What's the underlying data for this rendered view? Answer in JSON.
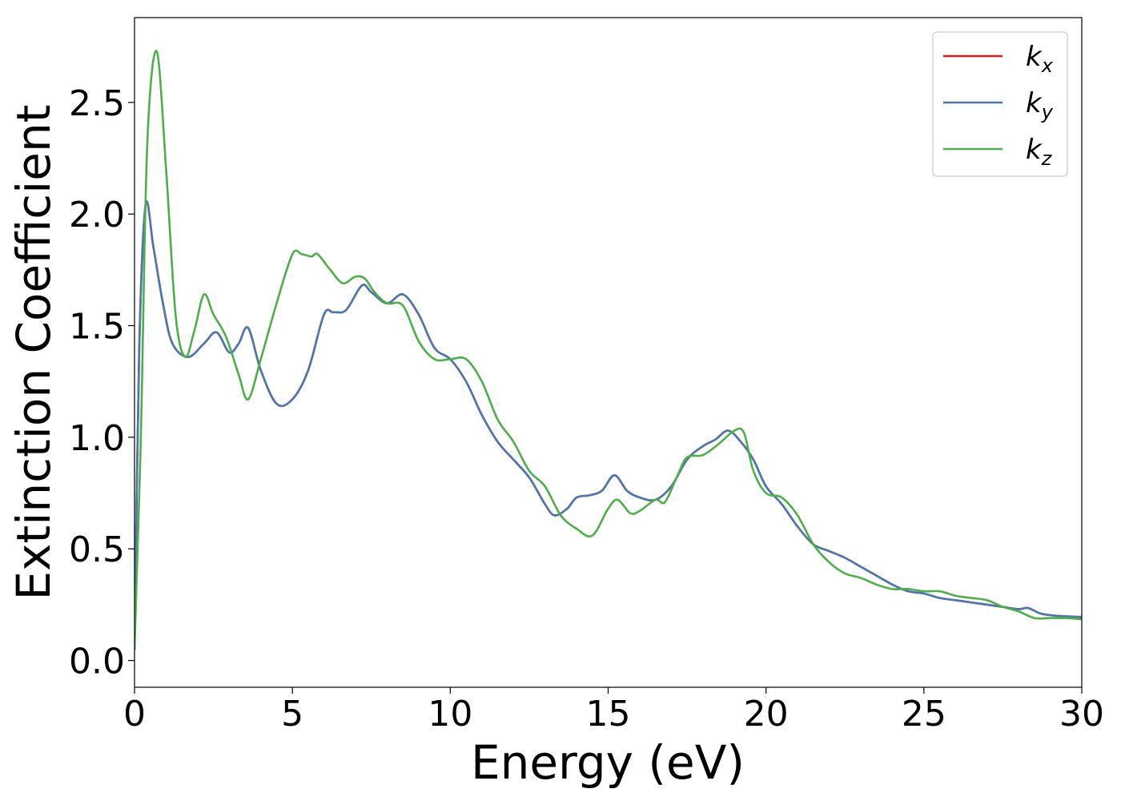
{
  "chart_data": {
    "type": "line",
    "title": "",
    "xlabel": "Energy (eV)",
    "ylabel": "Extinction Coefficient",
    "xlim": [
      0,
      30
    ],
    "ylim": [
      -0.12,
      2.88
    ],
    "xticks": [
      0,
      5,
      10,
      15,
      20,
      25,
      30
    ],
    "xtick_labels": [
      "0",
      "5",
      "10",
      "15",
      "20",
      "25",
      "30"
    ],
    "yticks": [
      0.0,
      0.5,
      1.0,
      1.5,
      2.0,
      2.5
    ],
    "ytick_labels": [
      "0.0",
      "0.5",
      "1.0",
      "1.5",
      "2.0",
      "2.5"
    ],
    "grid": false,
    "legend_position": "top-right",
    "series": [
      {
        "name_base": "k",
        "name_sub": "x",
        "color": "#e41a1c",
        "x": [
          0,
          0.15,
          0.35,
          0.6,
          0.9,
          1.2,
          1.7,
          2.2,
          2.6,
          3.0,
          3.3,
          3.6,
          4.0,
          4.5,
          5.0,
          5.5,
          6.0,
          6.3,
          6.7,
          7.2,
          7.5,
          8.0,
          8.5,
          9.0,
          9.5,
          10.0,
          10.5,
          11.0,
          11.5,
          12.0,
          12.5,
          13.0,
          13.3,
          13.7,
          14.0,
          14.4,
          14.8,
          15.2,
          15.6,
          16.0,
          16.5,
          17.0,
          17.5,
          18.0,
          18.4,
          18.8,
          19.2,
          19.6,
          20.0,
          20.5,
          21.0,
          21.5,
          22.0,
          22.5,
          23.0,
          23.5,
          24.0,
          24.5,
          25.0,
          25.5,
          26.0,
          26.5,
          27.0,
          27.5,
          28.0,
          28.3,
          28.7,
          29.2,
          30.0
        ],
        "y": [
          0.05,
          1.4,
          2.04,
          1.85,
          1.6,
          1.42,
          1.36,
          1.42,
          1.47,
          1.38,
          1.42,
          1.49,
          1.3,
          1.15,
          1.17,
          1.3,
          1.55,
          1.56,
          1.57,
          1.68,
          1.65,
          1.6,
          1.64,
          1.55,
          1.4,
          1.35,
          1.25,
          1.1,
          0.98,
          0.9,
          0.82,
          0.7,
          0.65,
          0.68,
          0.73,
          0.74,
          0.76,
          0.83,
          0.76,
          0.73,
          0.72,
          0.78,
          0.9,
          0.96,
          0.99,
          1.03,
          0.98,
          0.9,
          0.78,
          0.7,
          0.6,
          0.52,
          0.49,
          0.46,
          0.42,
          0.38,
          0.34,
          0.31,
          0.3,
          0.28,
          0.27,
          0.26,
          0.25,
          0.24,
          0.23,
          0.235,
          0.21,
          0.2,
          0.195
        ]
      },
      {
        "name_base": "k",
        "name_sub": "y",
        "color": "#4a78b0",
        "x": [
          0,
          0.15,
          0.35,
          0.6,
          0.9,
          1.2,
          1.7,
          2.2,
          2.6,
          3.0,
          3.3,
          3.6,
          4.0,
          4.5,
          5.0,
          5.5,
          6.0,
          6.3,
          6.7,
          7.2,
          7.5,
          8.0,
          8.5,
          9.0,
          9.5,
          10.0,
          10.5,
          11.0,
          11.5,
          12.0,
          12.5,
          13.0,
          13.3,
          13.7,
          14.0,
          14.4,
          14.8,
          15.2,
          15.6,
          16.0,
          16.5,
          17.0,
          17.5,
          18.0,
          18.4,
          18.8,
          19.2,
          19.6,
          20.0,
          20.5,
          21.0,
          21.5,
          22.0,
          22.5,
          23.0,
          23.5,
          24.0,
          24.5,
          25.0,
          25.5,
          26.0,
          26.5,
          27.0,
          27.5,
          28.0,
          28.3,
          28.7,
          29.2,
          30.0
        ],
        "y": [
          0.05,
          1.4,
          2.04,
          1.85,
          1.6,
          1.42,
          1.36,
          1.42,
          1.47,
          1.38,
          1.42,
          1.49,
          1.3,
          1.15,
          1.17,
          1.3,
          1.55,
          1.56,
          1.57,
          1.68,
          1.65,
          1.6,
          1.64,
          1.55,
          1.4,
          1.35,
          1.25,
          1.1,
          0.98,
          0.9,
          0.82,
          0.7,
          0.65,
          0.68,
          0.73,
          0.74,
          0.76,
          0.83,
          0.76,
          0.73,
          0.72,
          0.78,
          0.9,
          0.96,
          0.99,
          1.03,
          0.98,
          0.9,
          0.78,
          0.7,
          0.6,
          0.52,
          0.49,
          0.46,
          0.42,
          0.38,
          0.34,
          0.31,
          0.3,
          0.28,
          0.27,
          0.26,
          0.25,
          0.24,
          0.23,
          0.235,
          0.21,
          0.2,
          0.195
        ]
      },
      {
        "name_base": "k",
        "name_sub": "z",
        "color": "#4daf4a",
        "x": [
          0,
          0.2,
          0.4,
          0.7,
          1.0,
          1.3,
          1.6,
          1.9,
          2.2,
          2.5,
          2.9,
          3.3,
          3.6,
          4.0,
          4.5,
          5.0,
          5.3,
          5.6,
          5.8,
          6.2,
          6.6,
          7.0,
          7.3,
          7.6,
          8.0,
          8.5,
          9.0,
          9.5,
          10.0,
          10.5,
          11.0,
          11.5,
          12.0,
          12.5,
          13.0,
          13.5,
          14.0,
          14.5,
          15.0,
          15.3,
          15.7,
          16.0,
          16.5,
          16.8,
          17.2,
          17.5,
          18.0,
          18.5,
          19.0,
          19.3,
          19.6,
          20.0,
          20.5,
          21.0,
          21.5,
          22.0,
          22.5,
          23.0,
          23.5,
          24.0,
          24.5,
          25.0,
          25.5,
          26.0,
          26.5,
          27.0,
          27.5,
          28.0,
          28.5,
          29.0,
          29.5,
          30.0
        ],
        "y": [
          0.05,
          1.0,
          2.3,
          2.73,
          2.2,
          1.55,
          1.36,
          1.48,
          1.64,
          1.55,
          1.45,
          1.28,
          1.17,
          1.35,
          1.6,
          1.82,
          1.82,
          1.81,
          1.82,
          1.75,
          1.69,
          1.72,
          1.71,
          1.65,
          1.6,
          1.59,
          1.43,
          1.35,
          1.35,
          1.35,
          1.25,
          1.08,
          0.98,
          0.85,
          0.78,
          0.65,
          0.59,
          0.56,
          0.68,
          0.72,
          0.66,
          0.67,
          0.72,
          0.71,
          0.83,
          0.91,
          0.92,
          0.97,
          1.03,
          1.02,
          0.85,
          0.75,
          0.73,
          0.65,
          0.52,
          0.44,
          0.39,
          0.37,
          0.34,
          0.32,
          0.32,
          0.31,
          0.31,
          0.29,
          0.28,
          0.27,
          0.24,
          0.22,
          0.19,
          0.19,
          0.19,
          0.185
        ]
      }
    ]
  }
}
